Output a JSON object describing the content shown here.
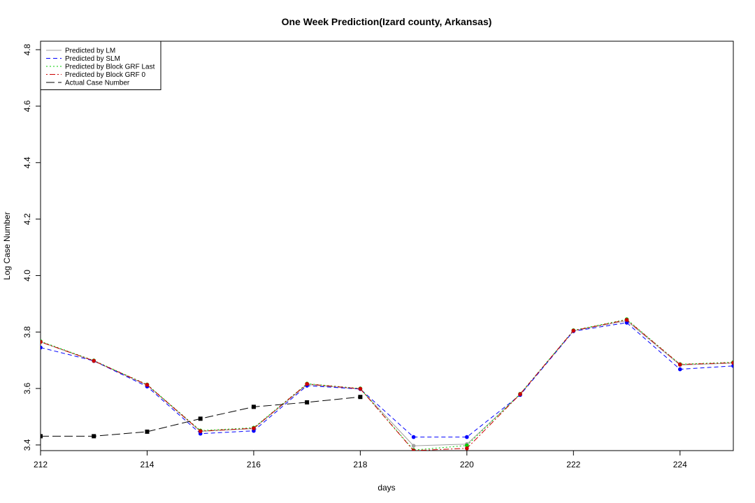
{
  "chart_data": {
    "type": "line",
    "title": "One Week Prediction(Izard county, Arkansas)",
    "xlabel": "days",
    "ylabel": "Log Case Number",
    "xlim": [
      212,
      225
    ],
    "ylim": [
      3.38,
      4.83
    ],
    "xticks": [
      212,
      214,
      216,
      218,
      220,
      222,
      224
    ],
    "yticks": [
      3.4,
      3.6,
      3.8,
      4.0,
      4.2,
      4.4,
      4.6,
      4.8
    ],
    "legend_position": "top-left",
    "series": [
      {
        "name": "Predicted by LM",
        "color": "#a0a0a0",
        "dash": "solid",
        "x": [
          212,
          213,
          214,
          215,
          216,
          217,
          218,
          219,
          220,
          221,
          222,
          223,
          224,
          225
        ],
        "y": [
          3.765,
          3.697,
          3.612,
          3.448,
          3.458,
          3.614,
          3.598,
          3.397,
          3.403,
          3.579,
          3.804,
          3.84,
          3.683,
          3.69
        ]
      },
      {
        "name": "Predicted by SLM",
        "color": "#0000ff",
        "dash": "dashed",
        "x": [
          212,
          213,
          214,
          215,
          216,
          217,
          218,
          219,
          220,
          221,
          222,
          223,
          224,
          225
        ],
        "y": [
          3.745,
          3.698,
          3.607,
          3.44,
          3.45,
          3.61,
          3.598,
          3.428,
          3.428,
          3.577,
          3.803,
          3.833,
          3.668,
          3.68
        ]
      },
      {
        "name": "Predicted by Block GRF Last",
        "color": "#00cc00",
        "dash": "dotted",
        "x": [
          212,
          213,
          214,
          215,
          216,
          217,
          218,
          219,
          220,
          221,
          222,
          223,
          224,
          225
        ],
        "y": [
          3.767,
          3.699,
          3.614,
          3.451,
          3.461,
          3.617,
          3.6,
          3.382,
          3.398,
          3.581,
          3.806,
          3.845,
          3.686,
          3.693
        ]
      },
      {
        "name": "Predicted by Block GRF 0",
        "color": "#cc0000",
        "dash": "dotdash",
        "x": [
          212,
          213,
          214,
          215,
          216,
          217,
          218,
          219,
          220,
          221,
          222,
          223,
          224,
          225
        ],
        "y": [
          3.765,
          3.698,
          3.613,
          3.449,
          3.459,
          3.616,
          3.599,
          3.38,
          3.388,
          3.58,
          3.805,
          3.843,
          3.685,
          3.691
        ]
      },
      {
        "name": "Actual Case Number",
        "color": "#000000",
        "dash": "longdash",
        "x": [
          212,
          213,
          214,
          215,
          216,
          217,
          218
        ],
        "y": [
          3.431,
          3.431,
          3.447,
          3.493,
          3.535,
          3.551,
          3.57
        ]
      }
    ]
  }
}
